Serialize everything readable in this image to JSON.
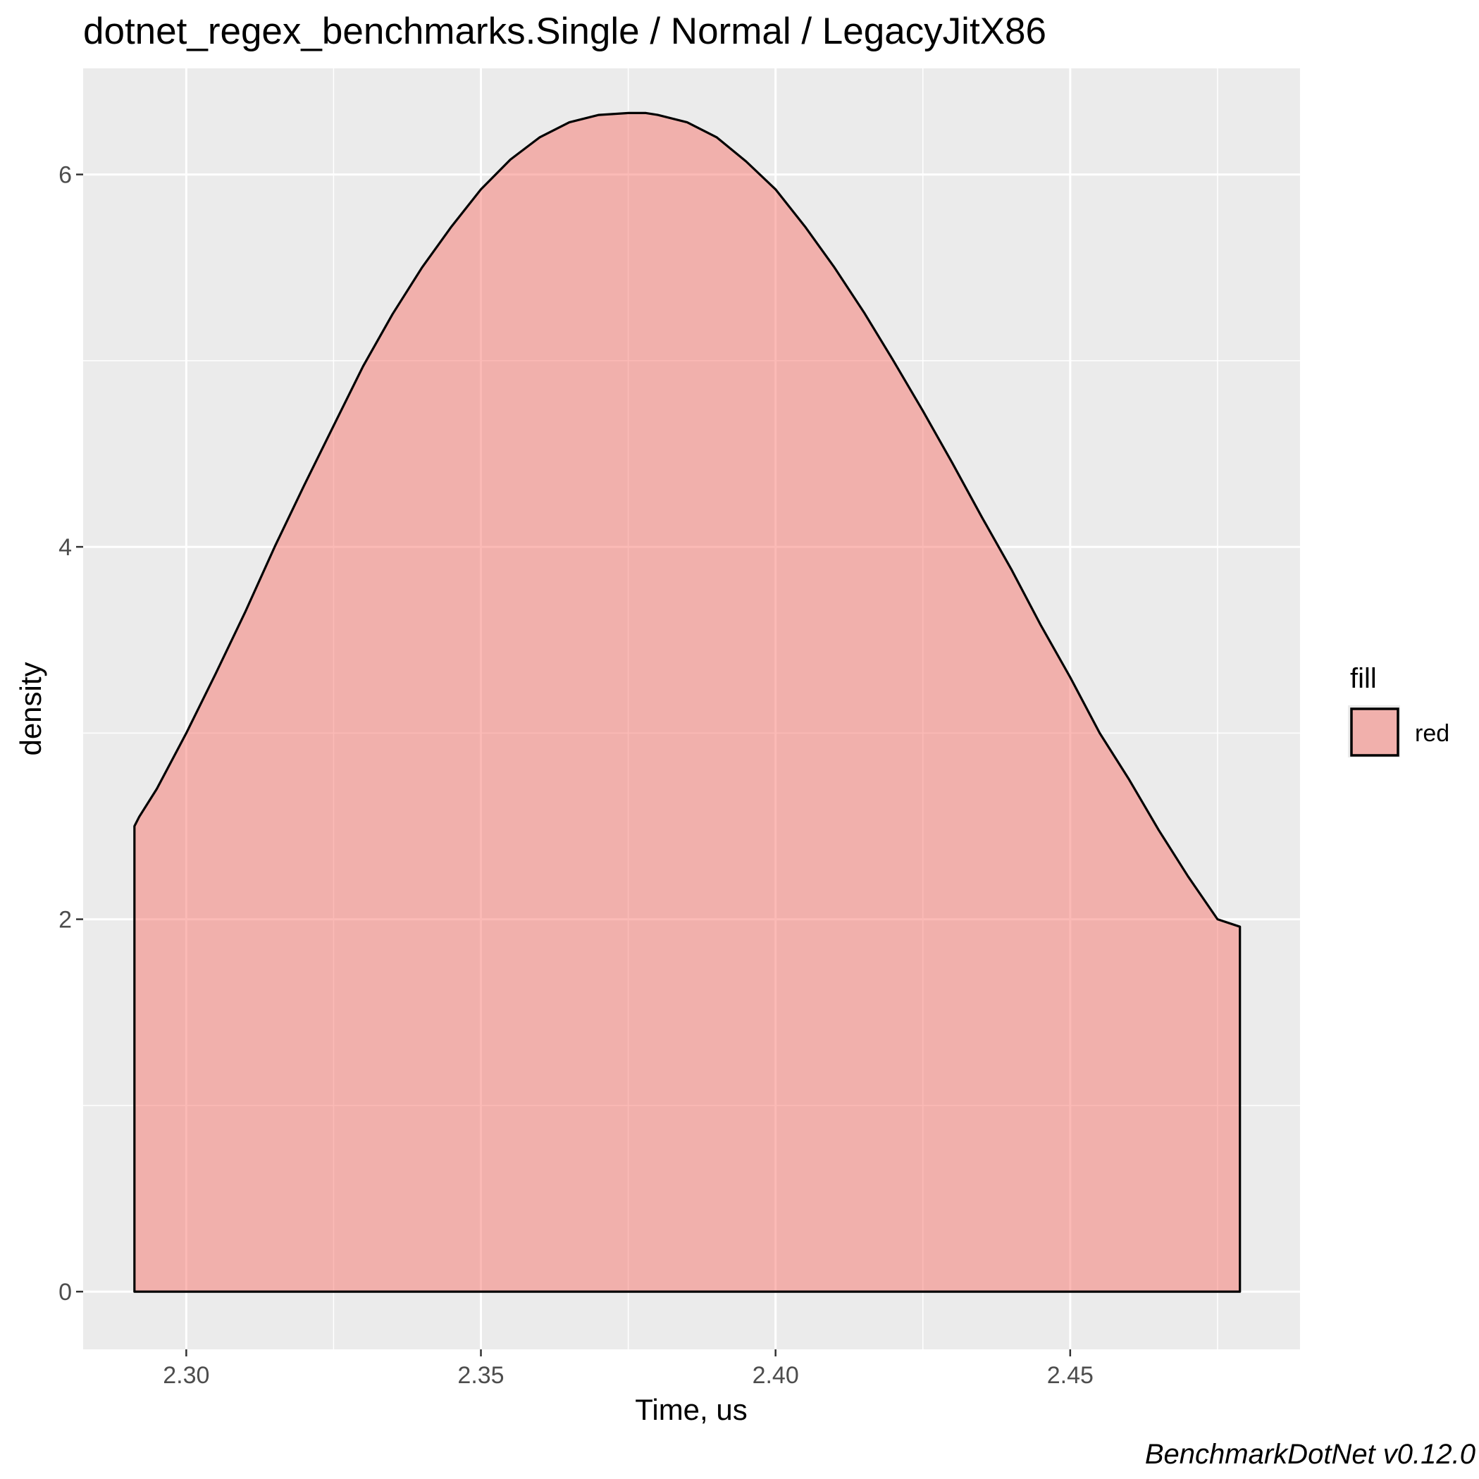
{
  "chart_data": {
    "type": "area",
    "title": "dotnet_regex_benchmarks.Single / Normal / LegacyJitX86",
    "xlabel": "Time, us",
    "ylabel": "density",
    "xlim": [
      2.2825,
      2.489
    ],
    "ylim": [
      -0.31,
      6.57
    ],
    "x_ticks": [
      2.3,
      2.35,
      2.4,
      2.45
    ],
    "x_tick_labels": [
      "2.30",
      "2.35",
      "2.40",
      "2.45"
    ],
    "y_ticks": [
      0,
      2,
      4,
      6
    ],
    "y_tick_labels": [
      "0",
      "2",
      "4",
      "6"
    ],
    "grid": true,
    "legend": {
      "title": "fill",
      "position": "right",
      "entries": [
        {
          "label": "red",
          "color": "#F8766D"
        }
      ]
    },
    "caption": "BenchmarkDotNet v0.12.0",
    "series": [
      {
        "fill": "#F8766D",
        "fill_opacity": 0.5,
        "x": [
          2.2912,
          2.292,
          2.295,
          2.3,
          2.305,
          2.31,
          2.315,
          2.32,
          2.325,
          2.33,
          2.335,
          2.34,
          2.345,
          2.35,
          2.355,
          2.36,
          2.365,
          2.37,
          2.375,
          2.378,
          2.38,
          2.385,
          2.39,
          2.395,
          2.4,
          2.405,
          2.41,
          2.415,
          2.42,
          2.425,
          2.43,
          2.435,
          2.44,
          2.445,
          2.45,
          2.455,
          2.46,
          2.465,
          2.47,
          2.475,
          2.4788
        ],
        "y": [
          2.5,
          2.55,
          2.7,
          3.0,
          3.32,
          3.65,
          4.0,
          4.33,
          4.65,
          4.97,
          5.25,
          5.5,
          5.72,
          5.92,
          6.08,
          6.2,
          6.28,
          6.32,
          6.33,
          6.33,
          6.32,
          6.28,
          6.2,
          6.07,
          5.92,
          5.72,
          5.5,
          5.26,
          5.0,
          4.73,
          4.45,
          4.16,
          3.88,
          3.58,
          3.3,
          3.0,
          2.75,
          2.48,
          2.23,
          2.0,
          1.96
        ]
      }
    ]
  }
}
